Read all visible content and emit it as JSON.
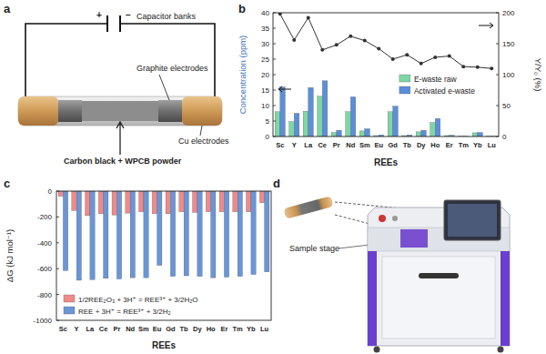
{
  "panel_labels": [
    "a",
    "b",
    "c",
    "d"
  ],
  "diagram_a": {
    "capacitor_banks": "Capacitor banks",
    "plus": "+",
    "minus": "−",
    "graphite_electrodes": "Graphite electrodes",
    "cu_electrodes": "Cu electrodes",
    "sample": "Carbon black + WPCB powder"
  },
  "diagram_d": {
    "sample_stage": "Sample stage"
  },
  "chart_data": [
    {
      "type": "bar",
      "categories": [
        "Sc",
        "Y",
        "La",
        "Ce",
        "Pr",
        "Nd",
        "Sm",
        "Eu",
        "Gd",
        "Tb",
        "Dy",
        "Ho",
        "Er",
        "Tm",
        "Yb",
        "Lu"
      ],
      "x_label": "REEs",
      "y_label": "Concentration (ppm)",
      "y2_label": "Y/Y₀ (%)",
      "ylim": [
        0,
        40
      ],
      "yticks": [
        0,
        5,
        10,
        15,
        20,
        25,
        30,
        35,
        40
      ],
      "y2lim": [
        0,
        200
      ],
      "y2ticks": [
        0,
        50,
        100,
        150,
        200
      ],
      "legend": "right",
      "series": [
        {
          "name": "E-waste raw",
          "color": "#7ed6a4",
          "values": [
            8,
            4.8,
            8.2,
            13,
            1.3,
            8,
            1.8,
            0.3,
            8,
            0.3,
            1.5,
            4.5,
            0.3,
            0.1,
            1.2,
            0.1
          ]
        },
        {
          "name": "Activated e-waste",
          "color": "#5b8fd8",
          "values": [
            16,
            7.5,
            15.8,
            18,
            2,
            12.8,
            2.5,
            0.5,
            9.8,
            0.5,
            2,
            5.8,
            0.4,
            0.1,
            1.3,
            0.1
          ]
        },
        {
          "type": "line",
          "axis": "y2",
          "color": "#333333",
          "marker": "circle",
          "values": [
            198,
            156,
            192,
            140,
            148,
            162,
            155,
            142,
            125,
            132,
            118,
            128,
            130,
            113,
            112,
            110
          ]
        }
      ]
    },
    {
      "type": "bar",
      "categories": [
        "Sc",
        "Y",
        "La",
        "Ce",
        "Pr",
        "Nd",
        "Sm",
        "Eu",
        "Gd",
        "Tb",
        "Dy",
        "Ho",
        "Er",
        "Tm",
        "Yb",
        "Lu"
      ],
      "x_label": "REEs",
      "y_label": "ΔG (kJ mol⁻¹)",
      "ylim": [
        -1000,
        0
      ],
      "yticks": [
        -1000,
        -800,
        -600,
        -400,
        -200,
        0
      ],
      "legend": "lower left",
      "series": [
        {
          "name": "1/2REE₂O₃ + 3H⁺ = REE³⁺ + 3/2H₂O",
          "color": "#f08a8a",
          "values": [
            -40,
            -150,
            -190,
            -175,
            -185,
            -170,
            -160,
            -175,
            -175,
            -160,
            -165,
            -160,
            -160,
            -160,
            -160,
            -90
          ]
        },
        {
          "name": "REE + 3H⁺ = REE³⁺ + 3/2H₂",
          "color": "#6a96d8",
          "values": [
            -615,
            -690,
            -685,
            -675,
            -680,
            -670,
            -670,
            -575,
            -660,
            -655,
            -660,
            -670,
            -665,
            -660,
            -645,
            -625
          ]
        }
      ]
    }
  ]
}
